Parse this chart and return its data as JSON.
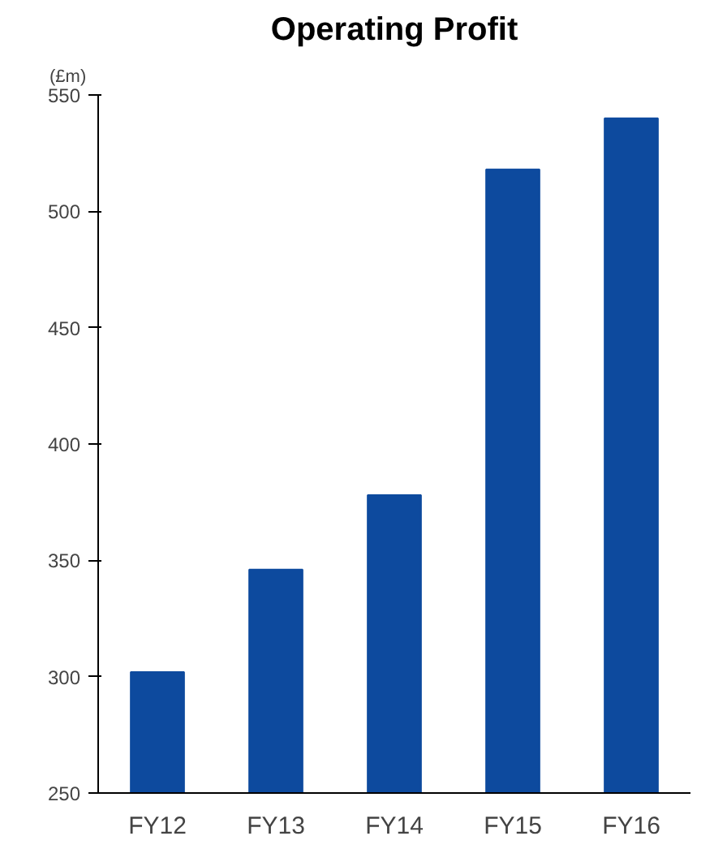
{
  "chart_data": {
    "type": "bar",
    "title": "Operating Profit",
    "ylabel": "(£m)",
    "categories": [
      "FY12",
      "FY13",
      "FY14",
      "FY15",
      "FY16"
    ],
    "values": [
      302,
      346,
      378,
      518,
      540
    ],
    "color": "#0d4a9e",
    "ylim": [
      250,
      550
    ],
    "yticks": [
      250,
      300,
      350,
      400,
      450,
      500,
      550
    ],
    "grid": false
  }
}
